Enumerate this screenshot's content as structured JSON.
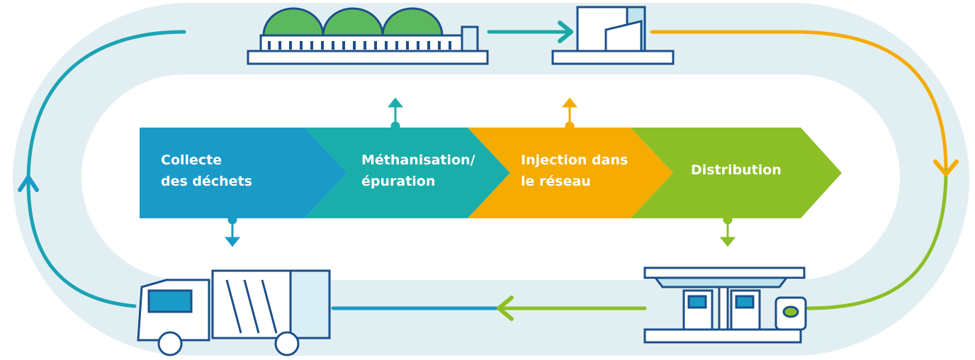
{
  "steps": [
    {
      "lines": [
        "Collecte",
        "des déchets"
      ]
    },
    {
      "lines": [
        "Méthanisation/",
        "épuration"
      ]
    },
    {
      "lines": [
        "Injection dans",
        "le réseau"
      ]
    },
    {
      "lines": [
        "Distribution"
      ]
    }
  ]
}
